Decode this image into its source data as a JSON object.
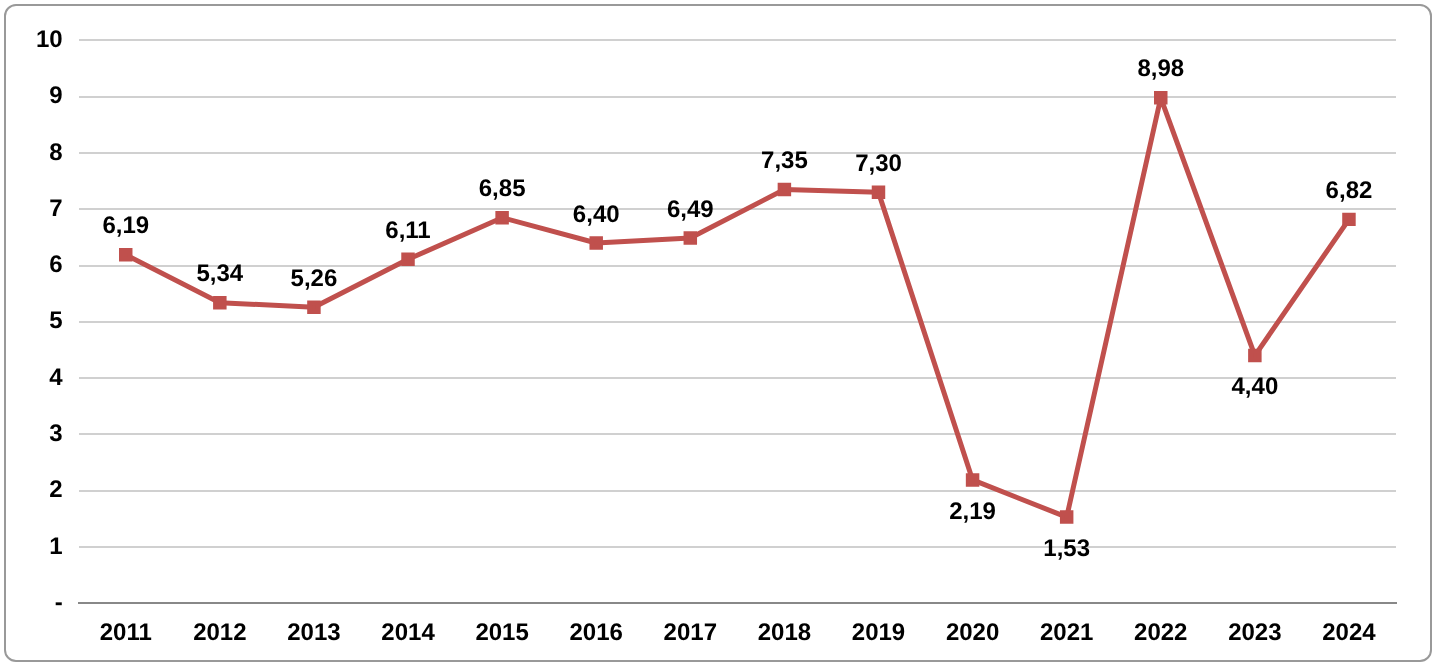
{
  "chart_data": {
    "type": "line",
    "categories": [
      "2011",
      "2012",
      "2013",
      "2014",
      "2015",
      "2016",
      "2017",
      "2018",
      "2019",
      "2020",
      "2021",
      "2022",
      "2023",
      "2024"
    ],
    "series": [
      {
        "color": "#c0504d",
        "values": [
          6.19,
          5.34,
          5.26,
          6.11,
          6.85,
          6.4,
          6.49,
          7.35,
          7.3,
          2.19,
          1.53,
          8.98,
          4.4,
          6.82
        ],
        "value_labels": [
          "6,19",
          "5,34",
          "5,26",
          "6,11",
          "6,85",
          "6,40",
          "6,49",
          "7,35",
          "7,30",
          "2,19",
          "1,53",
          "8,98",
          "4,40",
          "6,82"
        ]
      }
    ],
    "ylim": [
      0,
      10
    ],
    "yticks": [
      {
        "value": 0,
        "label": "-"
      },
      1,
      2,
      3,
      4,
      5,
      6,
      7,
      8,
      9,
      10
    ],
    "grid": "y",
    "legend": false,
    "marker": "square",
    "line_style": "solid"
  }
}
